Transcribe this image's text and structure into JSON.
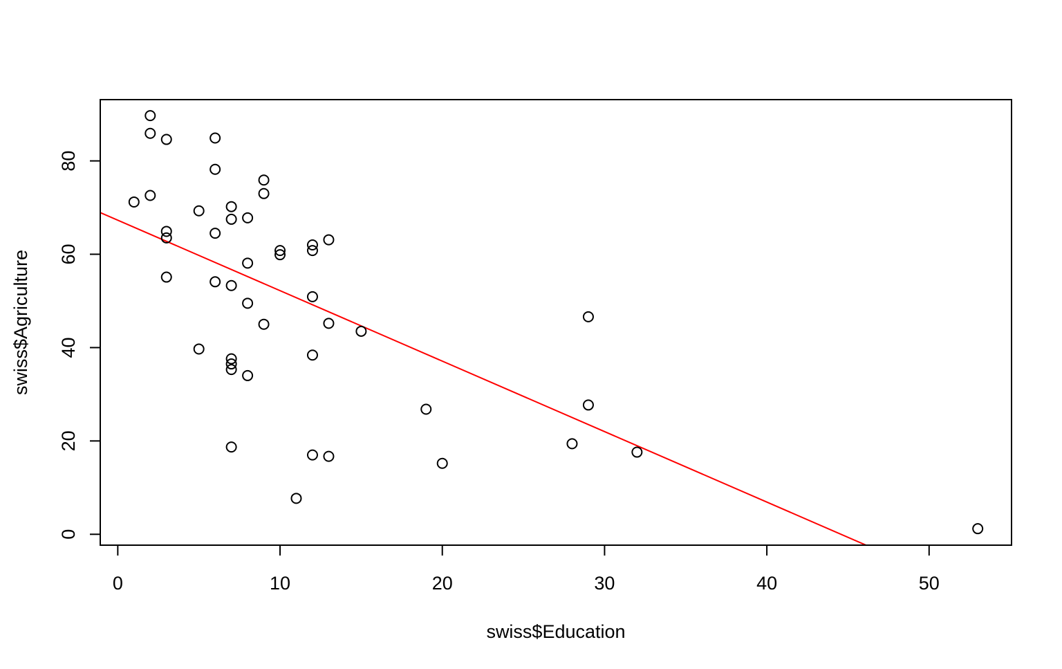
{
  "chart_data": {
    "type": "scatter",
    "title": "",
    "xlabel": "swiss$Education",
    "ylabel": "swiss$Agriculture",
    "xlim": [
      -1.08,
      55.08
    ],
    "ylim": [
      -2.33,
      93.13
    ],
    "xticks": [
      0,
      10,
      20,
      30,
      40,
      50
    ],
    "yticks": [
      0,
      20,
      40,
      60,
      80
    ],
    "grid": false,
    "legend": "none",
    "point_color": "#000000",
    "line_color": "#ff0000",
    "points": [
      {
        "x": 2,
        "y": 89.7
      },
      {
        "x": 2,
        "y": 85.9
      },
      {
        "x": 3,
        "y": 84.6
      },
      {
        "x": 6,
        "y": 84.9
      },
      {
        "x": 6,
        "y": 78.2
      },
      {
        "x": 9,
        "y": 75.9
      },
      {
        "x": 9,
        "y": 73.0
      },
      {
        "x": 2,
        "y": 72.6
      },
      {
        "x": 1,
        "y": 71.2
      },
      {
        "x": 7,
        "y": 70.2
      },
      {
        "x": 5,
        "y": 69.3
      },
      {
        "x": 8,
        "y": 67.8
      },
      {
        "x": 7,
        "y": 67.5
      },
      {
        "x": 3,
        "y": 64.9
      },
      {
        "x": 6,
        "y": 64.5
      },
      {
        "x": 3,
        "y": 63.5
      },
      {
        "x": 13,
        "y": 63.1
      },
      {
        "x": 12,
        "y": 62.0
      },
      {
        "x": 10,
        "y": 60.8
      },
      {
        "x": 12,
        "y": 60.8
      },
      {
        "x": 10,
        "y": 59.9
      },
      {
        "x": 8,
        "y": 58.1
      },
      {
        "x": 3,
        "y": 55.1
      },
      {
        "x": 6,
        "y": 54.1
      },
      {
        "x": 7,
        "y": 53.3
      },
      {
        "x": 12,
        "y": 50.9
      },
      {
        "x": 8,
        "y": 49.5
      },
      {
        "x": 29,
        "y": 46.6
      },
      {
        "x": 13,
        "y": 45.2
      },
      {
        "x": 9,
        "y": 45.0
      },
      {
        "x": 15,
        "y": 43.5
      },
      {
        "x": 5,
        "y": 39.7
      },
      {
        "x": 12,
        "y": 38.4
      },
      {
        "x": 7,
        "y": 37.6
      },
      {
        "x": 7,
        "y": 36.5
      },
      {
        "x": 7,
        "y": 35.3
      },
      {
        "x": 8,
        "y": 34.0
      },
      {
        "x": 29,
        "y": 27.7
      },
      {
        "x": 19,
        "y": 26.8
      },
      {
        "x": 28,
        "y": 19.4
      },
      {
        "x": 7,
        "y": 18.7
      },
      {
        "x": 32,
        "y": 17.6
      },
      {
        "x": 12,
        "y": 17.0
      },
      {
        "x": 13,
        "y": 16.7
      },
      {
        "x": 20,
        "y": 15.2
      },
      {
        "x": 11,
        "y": 7.7
      },
      {
        "x": 53,
        "y": 1.2
      }
    ],
    "regression_line": {
      "intercept": 67.3,
      "slope": -1.51
    }
  }
}
